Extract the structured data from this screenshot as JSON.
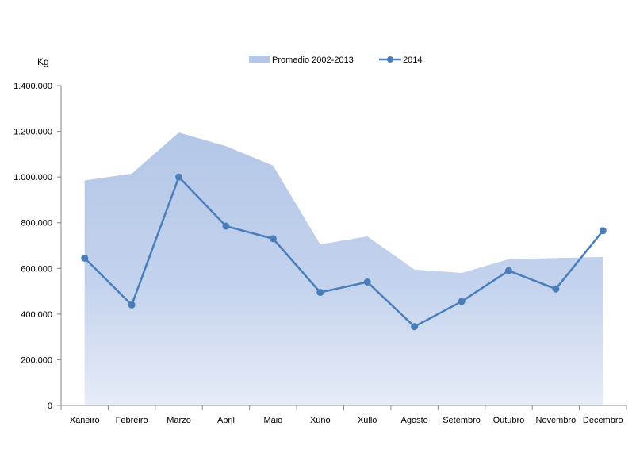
{
  "chart_data": {
    "type": "line",
    "ylabel": "Kg",
    "ylim": [
      0,
      1400000
    ],
    "yticks": [
      0,
      200000,
      400000,
      600000,
      800000,
      1000000,
      1200000,
      1400000
    ],
    "ytick_labels": [
      "0",
      "200.000",
      "400.000",
      "600.000",
      "800.000",
      "1.000.000",
      "1.200.000",
      "1.400.000"
    ],
    "categories": [
      "Xaneiro",
      "Febreiro",
      "Marzo",
      "Abril",
      "Maio",
      "Xuño",
      "Xullo",
      "Agosto",
      "Setembro",
      "Outubro",
      "Novembro",
      "Decembro"
    ],
    "legend_placement": "top-center",
    "grid": false,
    "series": [
      {
        "name": "Promedio 2002-2013",
        "kind": "area",
        "color": "#b4c7e7",
        "values": [
          985000,
          1015000,
          1195000,
          1135000,
          1050000,
          705000,
          740000,
          595000,
          580000,
          640000,
          645000,
          650000
        ]
      },
      {
        "name": "2014",
        "kind": "line",
        "color": "#4a7ebb",
        "values": [
          645000,
          440000,
          1000000,
          785000,
          730000,
          495000,
          540000,
          345000,
          455000,
          590000,
          510000,
          765000
        ]
      }
    ]
  }
}
